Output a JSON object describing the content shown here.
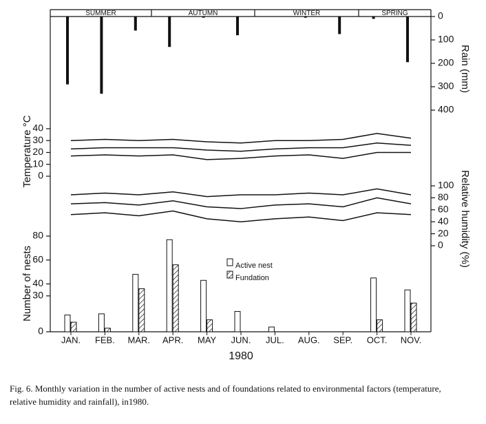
{
  "chart_data": [
    {
      "type": "bar",
      "axis_label": "Rain (mm)",
      "seasons": [
        "SUMMER",
        "AUTUMN",
        "WINTER",
        "SPRING"
      ],
      "values": [
        290,
        330,
        60,
        130,
        5,
        80,
        null,
        5,
        75,
        10,
        195
      ],
      "color": "#111111",
      "ylim": [
        0,
        400
      ],
      "yticks": [
        0,
        100,
        200,
        300,
        400
      ],
      "inverted": true,
      "axis": "y2"
    },
    {
      "type": "line",
      "axis_label": "Temperature °C",
      "ylim": [
        0,
        40
      ],
      "yticks": [
        0,
        10,
        20,
        30,
        40
      ],
      "series": [
        {
          "color": "#111111",
          "values": [
            30,
            31,
            30,
            31,
            29,
            28,
            30,
            30,
            31,
            36,
            32
          ]
        },
        {
          "color": "#111111",
          "values": [
            23,
            24,
            24,
            24,
            22,
            21,
            23,
            24,
            24,
            28,
            26
          ]
        },
        {
          "color": "#111111",
          "values": [
            17,
            18,
            17,
            18,
            14,
            15,
            17,
            18,
            15,
            20,
            20
          ]
        }
      ]
    },
    {
      "type": "line",
      "axis_label": "Relative humidity (%)",
      "ylim": [
        0,
        100
      ],
      "yticks": [
        0,
        20,
        40,
        60,
        80,
        100
      ],
      "axis": "y2",
      "series": [
        {
          "color": "#111111",
          "values": [
            85,
            88,
            85,
            90,
            82,
            85,
            85,
            88,
            85,
            95,
            85
          ]
        },
        {
          "color": "#111111",
          "values": [
            70,
            72,
            68,
            75,
            65,
            62,
            68,
            70,
            65,
            80,
            70
          ]
        },
        {
          "color": "#111111",
          "values": [
            52,
            55,
            50,
            58,
            45,
            40,
            45,
            48,
            42,
            55,
            52
          ]
        }
      ]
    },
    {
      "type": "bar",
      "axis_label": "Number of nests",
      "xlabel": "1980",
      "categories": [
        "JAN.",
        "FEB.",
        "MAR.",
        "APR.",
        "MAY",
        "JUN.",
        "JUL.",
        "AUG.",
        "SEP.",
        "OCT.",
        "NOV."
      ],
      "ylim": [
        0,
        80
      ],
      "yticks": [
        0,
        30,
        40,
        60,
        80
      ],
      "series": [
        {
          "name": "Active nest",
          "color": "#ffffff",
          "values": [
            14,
            15,
            48,
            77,
            43,
            17,
            4,
            0,
            0,
            45,
            35
          ]
        },
        {
          "name": "Fundation",
          "color": "hatch",
          "values": [
            8,
            3,
            36,
            56,
            10,
            0,
            0,
            0,
            0,
            10,
            24
          ]
        }
      ]
    }
  ],
  "caption": [
    "Fig. 6. Monthly variation in the number of active nests and of foundations related to environmental factors (temperature,",
    "relative humidity and rainfall), in1980."
  ]
}
